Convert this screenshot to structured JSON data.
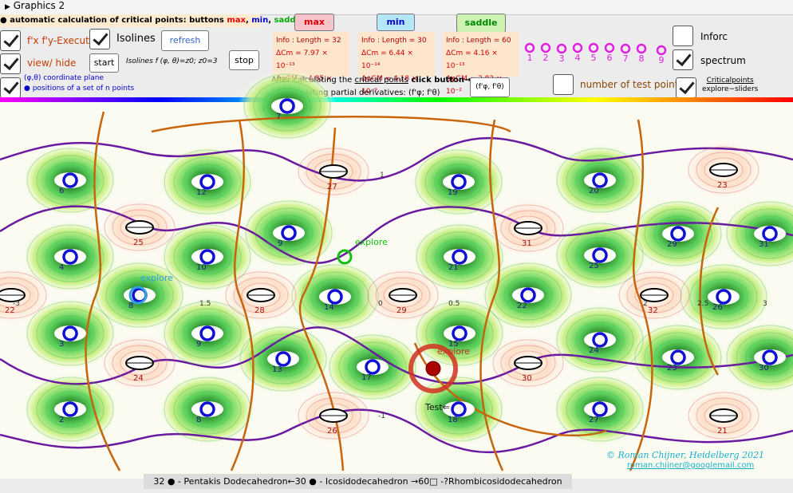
{
  "window_title": "Graphics 2",
  "header": {
    "prefix": "automatic calculation of critical points: buttons ",
    "max": "max",
    "sep1": ", ",
    "min": "min",
    "sep2": ", ",
    "saddle": "saddle",
    "arrow": "→"
  },
  "buttons": {
    "max": "max",
    "min": "min",
    "saddle": "saddle",
    "refresh": "refresh",
    "start": "start",
    "stop": "stop",
    "derivatives": "(f'φ, f'θ)"
  },
  "controls": {
    "execute": "f'x f'y-Execute",
    "isolines": "Isolines",
    "view_hide": "view/ hide",
    "isolines_formula": "Isolines f (φ, θ)=z0;  z0=3",
    "plane": "(φ,θ) coordinate plane",
    "positions": "● positions of a set of n points",
    "after_1": "After calculating the ",
    "after_link": "critical points",
    "after_2": "  click button→",
    "partial": "for calculating partial derivatives: (f'φ;  f'θ)",
    "infor": "Inforc",
    "spectrum": "spectrum",
    "test_points": "number of test points:",
    "critical_1": "Criticalpoints",
    "critical_2": "explore−sliders"
  },
  "info_boxes": [
    [
      "Info : Length = 32",
      "ΔCm = 7.97 × 10⁻¹³",
      "ΔφGM = 4.85 × 10⁻⁹"
    ],
    [
      "Info : Length = 30",
      "ΔCm = 6.44 × 10⁻¹⁴",
      "ΔφGM = 4.18 × 10⁻⁹"
    ],
    [
      "Info : Length = 60",
      "ΔCm = 4.16 × 10⁻¹³",
      "ΔφGM = 2.82 × 10⁻²"
    ]
  ],
  "test_numbers": [
    "1",
    "2",
    "3",
    "4",
    "5",
    "6",
    "7",
    "8",
    "9"
  ],
  "minima": [
    "6",
    "12",
    "19",
    "20",
    "4",
    "10",
    "9",
    "21",
    "25",
    "29",
    "31",
    "8",
    "14",
    "22",
    "26",
    "3",
    "9",
    "15",
    "24",
    "13",
    "17",
    "23",
    "30",
    "2",
    "8",
    "18",
    "27",
    "7"
  ],
  "maxima": [
    "27",
    "23",
    "25",
    "31",
    "22",
    "28",
    "29",
    "32",
    "24",
    "30",
    "26",
    "21"
  ],
  "axis_labels": [
    "0",
    "1.5",
    "0.5",
    "2.5",
    "3",
    "-3",
    "1",
    "-1",
    "2"
  ],
  "explore": [
    "explore",
    "explore",
    "explore"
  ],
  "test": "Test⇐",
  "credit": "©  Roman Chijner, Heidelberg 2021",
  "email": "roman.chijner@googlemail.com",
  "caption": "32 ● - Pentakis Dodecahedron←30 ● - Icosidodecahedron →60□  -?Rhombicosidodecahedron"
}
